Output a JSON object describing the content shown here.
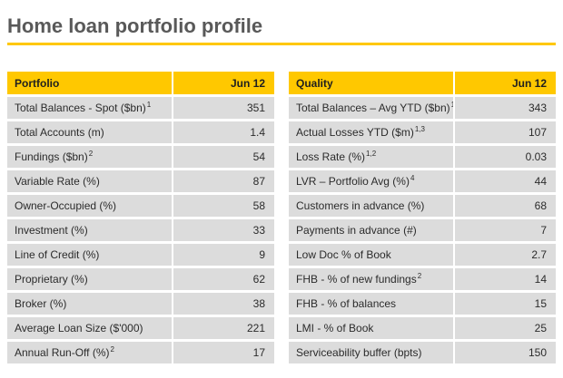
{
  "title": "Home loan portfolio profile",
  "colors": {
    "accent_yellow": "#FFC800",
    "title_gray": "#595959",
    "cell_gray": "#DCDCDC",
    "text_dark": "#2B2B2B"
  },
  "tables": [
    {
      "header": {
        "title": "Portfolio",
        "period": "Jun 12"
      },
      "rows": [
        {
          "label": "Total Balances  - Spot ($bn) ",
          "sup": "1",
          "value": "351"
        },
        {
          "label": "Total Accounts (m)",
          "sup": "",
          "value": "1.4"
        },
        {
          "label": "Fundings ($bn) ",
          "sup": "2",
          "value": "54"
        },
        {
          "label": "Variable Rate (%)",
          "sup": "",
          "value": "87"
        },
        {
          "label": "Owner-Occupied (%)",
          "sup": "",
          "value": "58"
        },
        {
          "label": "Investment (%)",
          "sup": "",
          "value": "33"
        },
        {
          "label": "Line of Credit (%)",
          "sup": "",
          "value": "9"
        },
        {
          "label": "Proprietary (%)",
          "sup": "",
          "value": "62"
        },
        {
          "label": "Broker (%)",
          "sup": "",
          "value": "38"
        },
        {
          "label": "Average Loan Size ($'000)",
          "sup": "",
          "value": "221"
        },
        {
          "label": "Annual Run-Off (%) ",
          "sup": "2",
          "value": "17"
        }
      ]
    },
    {
      "header": {
        "title": "Quality",
        "period": "Jun 12"
      },
      "rows": [
        {
          "label": "Total Balances – Avg YTD ($bn) ",
          "sup": "1",
          "value": "343"
        },
        {
          "label": "Actual Losses YTD ($m) ",
          "sup": "1,3",
          "value": "107"
        },
        {
          "label": "Loss Rate (%)",
          "sup": "1,2",
          "value": "0.03"
        },
        {
          "label": "LVR – Portfolio Avg (%) ",
          "sup": "4",
          "value": "44"
        },
        {
          "label": "Customers in advance (%)",
          "sup": "",
          "value": "68"
        },
        {
          "label": "Payments in advance (#)",
          "sup": "",
          "value": "7"
        },
        {
          "label": "Low Doc % of Book",
          "sup": "",
          "value": "2.7"
        },
        {
          "label": "FHB - % of new fundings ",
          "sup": "2",
          "value": "14"
        },
        {
          "label": "FHB - % of balances",
          "sup": "",
          "value": "15"
        },
        {
          "label": "LMI - % of Book",
          "sup": "",
          "value": "25"
        },
        {
          "label": "Serviceability buffer (bpts)",
          "sup": "",
          "value": "150"
        }
      ]
    }
  ]
}
